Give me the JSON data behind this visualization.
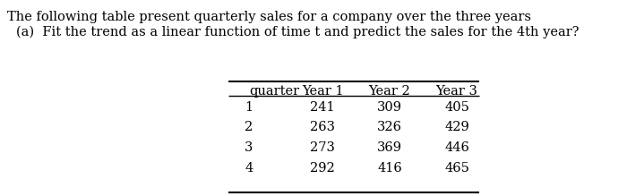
{
  "line1": "The following table present quarterly sales for a company over the three years",
  "line2": "(a)  Fit the trend as a linear function of time t and predict the sales for the 4th year?",
  "col_headers": [
    "quarter",
    "Year 1",
    "Year 2",
    "Year 3"
  ],
  "rows": [
    [
      "1",
      "241",
      "309",
      "405"
    ],
    [
      "2",
      "263",
      "326",
      "429"
    ],
    [
      "3",
      "273",
      "369",
      "446"
    ],
    [
      "4",
      "292",
      "416",
      "465"
    ]
  ],
  "bg_color": "#ffffff",
  "text_color": "#000000",
  "font_size_text": 10.5,
  "font_size_table": 10.5
}
